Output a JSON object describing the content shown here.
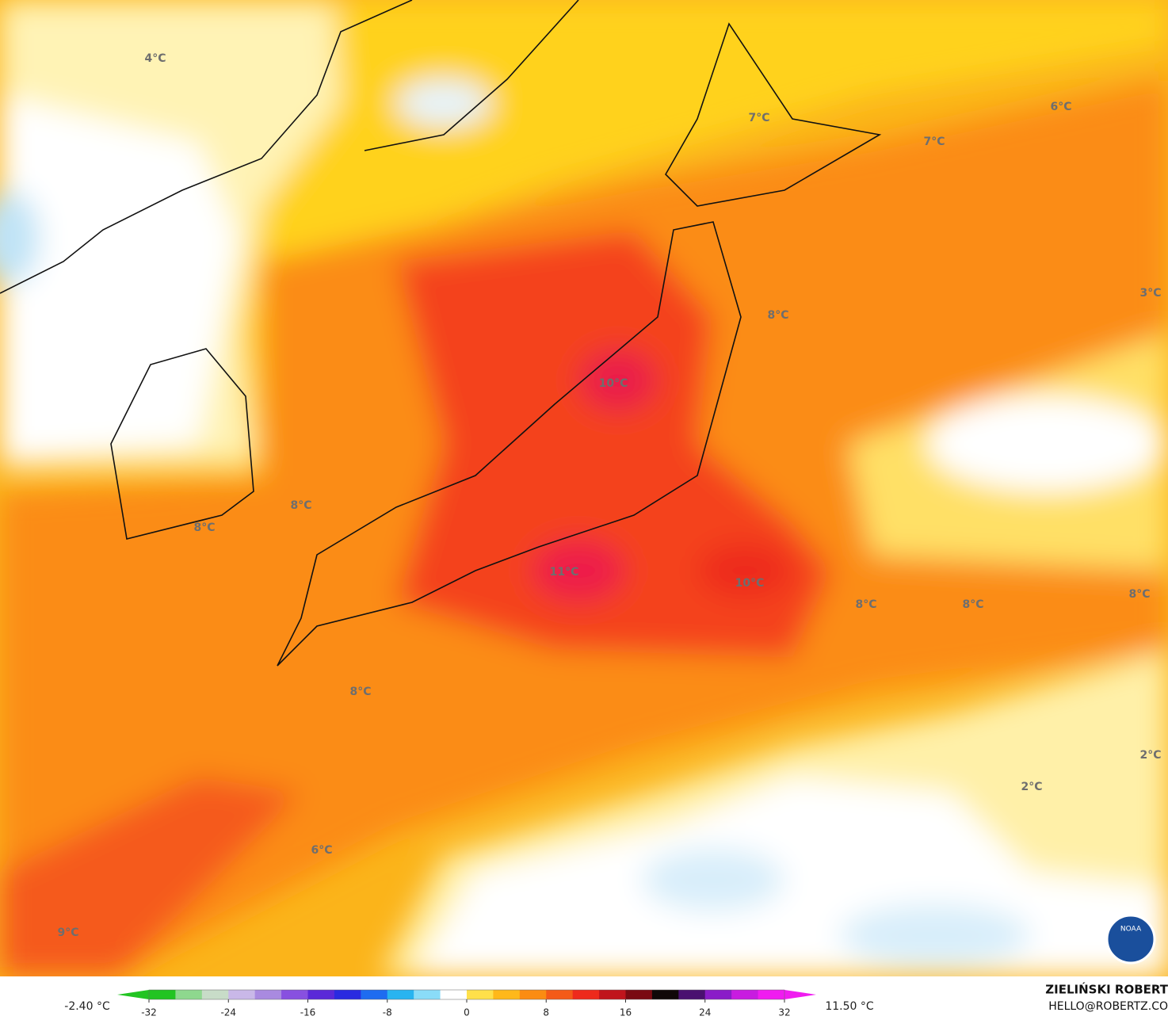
{
  "map": {
    "labels": [
      "4°C",
      "7°C",
      "7°C",
      "6°C",
      "3°C",
      "8°C",
      "10°C",
      "8°C",
      "8°C",
      "11°C",
      "10°C",
      "8°C",
      "8°C",
      "8°C",
      "8°C",
      "2°C",
      "2°C",
      "6°C",
      "9°C"
    ],
    "logo_text": "NOAA"
  },
  "colorbar": {
    "min_label": "-2.40 °C",
    "max_label": "11.50 °C",
    "lim": [
      -32,
      32
    ],
    "ticks": [
      -32,
      -24,
      -16,
      -8,
      0,
      8,
      16,
      24,
      32
    ],
    "colors": [
      "#22c422",
      "#8ed88e",
      "#c8dcc8",
      "#c9b8e8",
      "#a98ae0",
      "#8850e0",
      "#5a28d8",
      "#2a2ae0",
      "#1e6cf0",
      "#28b4f0",
      "#8adcf8",
      "#ffffff",
      "#ffe04a",
      "#ffb81a",
      "#fb8c12",
      "#f45a18",
      "#ee2a1c",
      "#c0141c",
      "#7a0a12",
      "#100808",
      "#4a1070",
      "#8a1cc8",
      "#c81ce0",
      "#f01cf0"
    ]
  },
  "credits": {
    "author": "ZIELIŃSKI ROBERT",
    "contact": "HELLO@ROBERTZ.CO"
  }
}
